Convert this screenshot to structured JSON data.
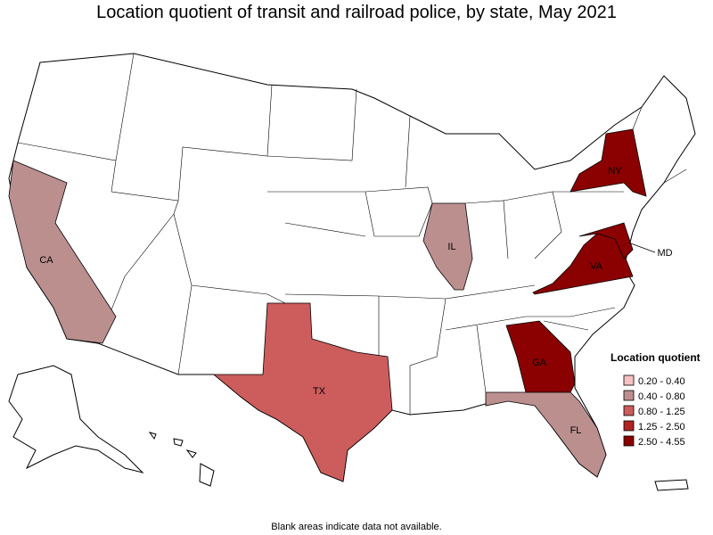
{
  "title": "Location quotient of transit and railroad police, by state, May 2021",
  "footnote": "Blank areas indicate data not available.",
  "legend": {
    "title": "Location quotient",
    "items": [
      {
        "label": "0.20 - 0.40",
        "color": "#f5c2c2"
      },
      {
        "label": "0.40 - 0.80",
        "color": "#bc8f8f"
      },
      {
        "label": "0.80 - 1.25",
        "color": "#cd5c5c"
      },
      {
        "label": "1.25 - 2.50",
        "color": "#b22222"
      },
      {
        "label": "2.50 - 4.55",
        "color": "#8b0000"
      }
    ]
  },
  "states": [
    {
      "label": "CA",
      "class": 1
    },
    {
      "label": "TX",
      "class": 2
    },
    {
      "label": "IL",
      "class": 1
    },
    {
      "label": "NY",
      "class": 4
    },
    {
      "label": "VA",
      "class": 4
    },
    {
      "label": "MD",
      "class": 4
    },
    {
      "label": "GA",
      "class": 4
    },
    {
      "label": "FL",
      "class": 1
    }
  ]
}
